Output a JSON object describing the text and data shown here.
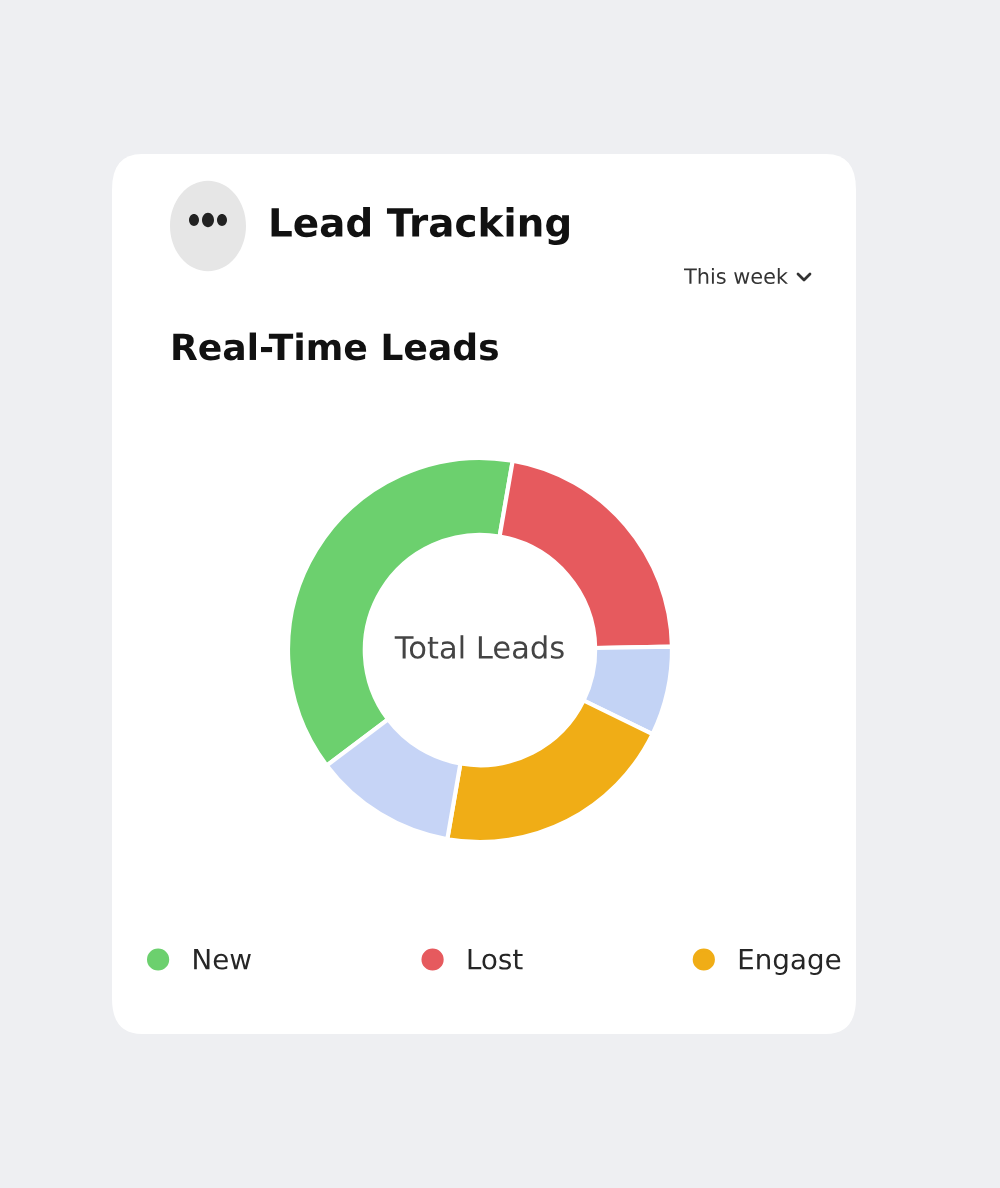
{
  "chart_data": {
    "type": "donut",
    "title": "Real-Time Leads",
    "categories": [
      "New",
      "Lost",
      null,
      "Engage",
      null
    ],
    "values": [
      38,
      22,
      7.5,
      20.5,
      12
    ],
    "colors": [
      "#6cd06e",
      "#e65a5e",
      "#c3d3f5",
      "#f0ad16",
      "#c6d4f6"
    ],
    "annotations": [
      "Lead Tracking",
      "This week",
      "Total Leads"
    ],
    "legend": "bottom"
  }
}
